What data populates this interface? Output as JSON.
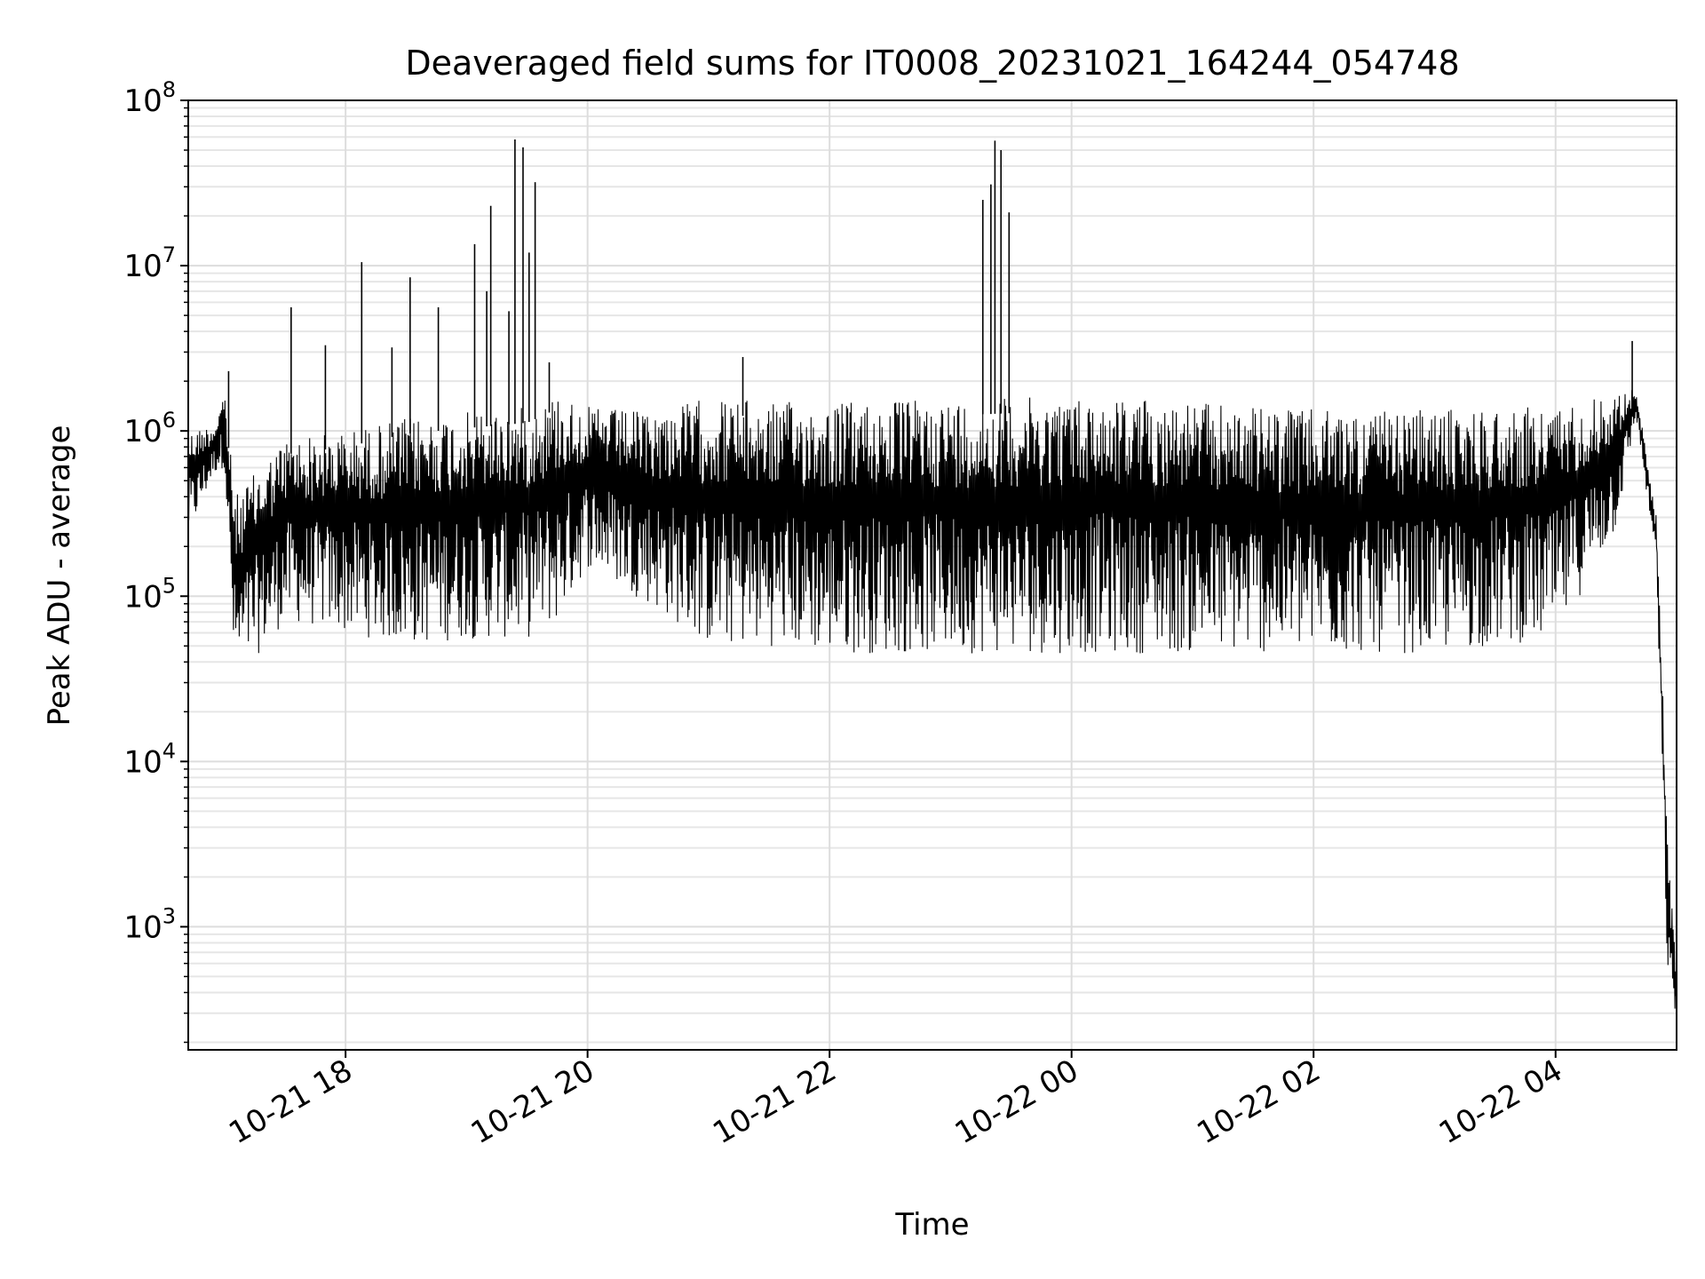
{
  "chart_data": {
    "type": "line",
    "title": "Deaveraged field sums for IT0008_20231021_164244_054748",
    "xlabel": "Time",
    "ylabel": "Peak ADU - average",
    "yscale": "log",
    "grid": "major and minor",
    "xlim": [
      "2023-10-21 16:42",
      "2023-10-22 05:00"
    ],
    "ylim": [
      180,
      100000000
    ],
    "x_ticks": [
      {
        "value": "2023-10-21 18:00",
        "label": "10-21 18"
      },
      {
        "value": "2023-10-21 20:00",
        "label": "10-21 20"
      },
      {
        "value": "2023-10-21 22:00",
        "label": "10-21 22"
      },
      {
        "value": "2023-10-22 00:00",
        "label": "10-22 00"
      },
      {
        "value": "2023-10-22 02:00",
        "label": "10-22 02"
      },
      {
        "value": "2023-10-22 04:00",
        "label": "10-22 04"
      }
    ],
    "y_ticks": [
      {
        "value": 1000,
        "base": "10",
        "exp": "3"
      },
      {
        "value": 10000,
        "base": "10",
        "exp": "4"
      },
      {
        "value": 100000,
        "base": "10",
        "exp": "5"
      },
      {
        "value": 1000000,
        "base": "10",
        "exp": "6"
      },
      {
        "value": 10000000,
        "base": "10",
        "exp": "7"
      },
      {
        "value": 100000000,
        "base": "10",
        "exp": "8"
      }
    ],
    "series": [
      {
        "color": "#000000",
        "envelope": [
          {
            "time": "2023-10-21 16:42",
            "low": 220000,
            "high": 1000000
          },
          {
            "time": "2023-10-21 16:55",
            "low": 550000,
            "high": 1100000
          },
          {
            "time": "2023-10-21 17:00",
            "low": 600000,
            "high": 1800000
          },
          {
            "time": "2023-10-21 17:05",
            "low": 30000,
            "high": 400000
          },
          {
            "time": "2023-10-21 17:30",
            "low": 70000,
            "high": 900000
          },
          {
            "time": "2023-10-21 18:00",
            "low": 60000,
            "high": 1000000
          },
          {
            "time": "2023-10-21 18:30",
            "low": 50000,
            "high": 1200000
          },
          {
            "time": "2023-10-21 19:00",
            "low": 55000,
            "high": 1300000
          },
          {
            "time": "2023-10-21 19:30",
            "low": 55000,
            "high": 1400000
          },
          {
            "time": "2023-10-21 19:45",
            "low": 70000,
            "high": 1700000
          },
          {
            "time": "2023-10-21 20:00",
            "low": 150000,
            "high": 1400000
          },
          {
            "time": "2023-10-21 20:30",
            "low": 90000,
            "high": 1300000
          },
          {
            "time": "2023-10-21 21:00",
            "low": 50000,
            "high": 1600000
          },
          {
            "time": "2023-10-21 21:30",
            "low": 50000,
            "high": 1500000
          },
          {
            "time": "2023-10-21 22:00",
            "low": 45000,
            "high": 1500000
          },
          {
            "time": "2023-10-21 22:30",
            "low": 45000,
            "high": 1550000
          },
          {
            "time": "2023-10-21 23:00",
            "low": 45000,
            "high": 1550000
          },
          {
            "time": "2023-10-21 23:30",
            "low": 45000,
            "high": 1600000
          },
          {
            "time": "2023-10-22 00:00",
            "low": 45000,
            "high": 1600000
          },
          {
            "time": "2023-10-22 00:30",
            "low": 45000,
            "high": 1600000
          },
          {
            "time": "2023-10-22 01:00",
            "low": 45000,
            "high": 1500000
          },
          {
            "time": "2023-10-22 01:30",
            "low": 45000,
            "high": 1400000
          },
          {
            "time": "2023-10-22 02:00",
            "low": 45000,
            "high": 1350000
          },
          {
            "time": "2023-10-22 02:30",
            "low": 45000,
            "high": 1300000
          },
          {
            "time": "2023-10-22 03:00",
            "low": 45000,
            "high": 1350000
          },
          {
            "time": "2023-10-22 03:30",
            "low": 50000,
            "high": 1400000
          },
          {
            "time": "2023-10-22 04:00",
            "low": 55000,
            "high": 1400000
          },
          {
            "time": "2023-10-22 04:30",
            "low": 250000,
            "high": 1700000
          },
          {
            "time": "2023-10-22 04:40",
            "low": 1200000,
            "high": 1800000
          },
          {
            "time": "2023-10-22 04:50",
            "low": 150000,
            "high": 300000
          },
          {
            "time": "2023-10-22 04:56",
            "low": 300,
            "high": 3000
          },
          {
            "time": "2023-10-22 05:00",
            "low": 300,
            "high": 500
          }
        ],
        "spikes": [
          {
            "time": "2023-10-21 17:02",
            "value": 2300000
          },
          {
            "time": "2023-10-21 17:33",
            "value": 5600000
          },
          {
            "time": "2023-10-21 17:50",
            "value": 3300000
          },
          {
            "time": "2023-10-21 18:08",
            "value": 10500000
          },
          {
            "time": "2023-10-21 18:23",
            "value": 3200000
          },
          {
            "time": "2023-10-21 18:32",
            "value": 8500000
          },
          {
            "time": "2023-10-21 18:46",
            "value": 5600000
          },
          {
            "time": "2023-10-21 19:04",
            "value": 13500000
          },
          {
            "time": "2023-10-21 19:10",
            "value": 7000000
          },
          {
            "time": "2023-10-21 19:12",
            "value": 23000000
          },
          {
            "time": "2023-10-21 19:21",
            "value": 5300000
          },
          {
            "time": "2023-10-21 19:24",
            "value": 58000000
          },
          {
            "time": "2023-10-21 19:28",
            "value": 52000000
          },
          {
            "time": "2023-10-21 19:31",
            "value": 12000000
          },
          {
            "time": "2023-10-21 19:34",
            "value": 32000000
          },
          {
            "time": "2023-10-21 19:41",
            "value": 2600000
          },
          {
            "time": "2023-10-21 21:17",
            "value": 2800000
          },
          {
            "time": "2023-10-21 23:16",
            "value": 25000000
          },
          {
            "time": "2023-10-21 23:20",
            "value": 31000000
          },
          {
            "time": "2023-10-21 23:22",
            "value": 57000000
          },
          {
            "time": "2023-10-21 23:25",
            "value": 50000000
          },
          {
            "time": "2023-10-21 23:29",
            "value": 21000000
          },
          {
            "time": "2023-10-22 04:38",
            "value": 3500000
          }
        ]
      }
    ]
  }
}
